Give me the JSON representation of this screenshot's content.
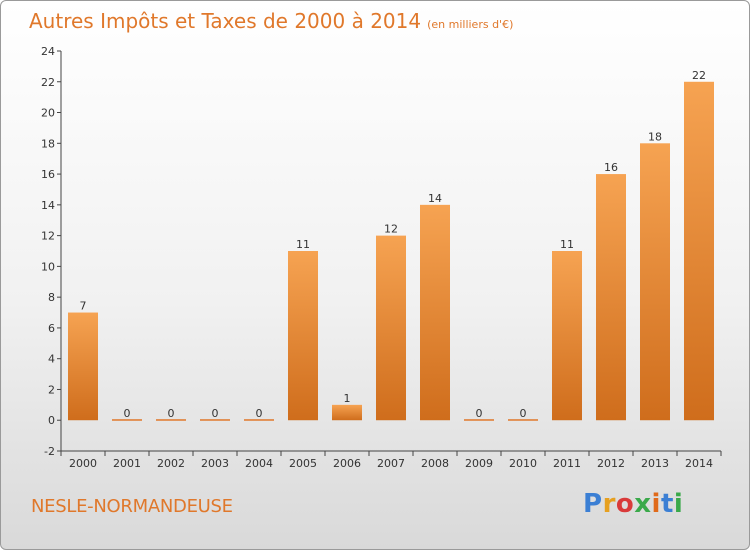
{
  "header": {
    "title": "Autres Impôts et Taxes de 2000 à 2014",
    "unit": "(en milliers d'€)"
  },
  "footer": {
    "commune": "NESLE-NORMANDEUSE",
    "logo": "Proxiti"
  },
  "colors": {
    "accent": "#e0782b",
    "bar_light": "#f6a352",
    "bar_dark": "#cf6d1c"
  },
  "chart_data": {
    "type": "bar",
    "categories": [
      "2000",
      "2001",
      "2002",
      "2003",
      "2004",
      "2005",
      "2006",
      "2007",
      "2008",
      "2009",
      "2010",
      "2011",
      "2012",
      "2013",
      "2014"
    ],
    "values": [
      7,
      0,
      0,
      0,
      0,
      11,
      1,
      12,
      14,
      0,
      0,
      11,
      16,
      18,
      22
    ],
    "title": "Autres Impôts et Taxes de 2000 à 2014",
    "subtitle": "(en milliers d'€)",
    "ylim": [
      -2,
      24
    ],
    "yticks": [
      -2,
      0,
      2,
      4,
      6,
      8,
      10,
      12,
      14,
      16,
      18,
      20,
      22,
      24
    ],
    "grid": false,
    "legend": "none"
  }
}
